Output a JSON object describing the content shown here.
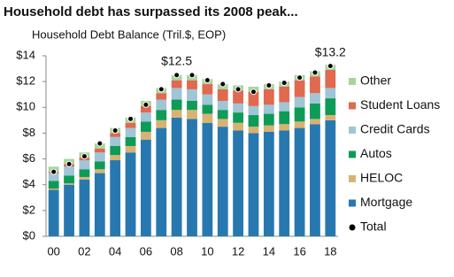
{
  "chart_data": {
    "type": "stacked-bar",
    "title": "Household debt has surpassed its 2008 peak...",
    "subtitle": "Household Debt Balance (Tril.$, EOP)",
    "categories": [
      "00",
      null,
      "02",
      null,
      "04",
      null,
      "06",
      null,
      "08",
      null,
      "10",
      null,
      "12",
      null,
      "14",
      null,
      "16",
      null,
      "18"
    ],
    "ylim": [
      0,
      14
    ],
    "yticks": [
      {
        "value": 0,
        "label": "$0"
      },
      {
        "value": 2,
        "label": "$2"
      },
      {
        "value": 4,
        "label": "$4"
      },
      {
        "value": 6,
        "label": "$6"
      },
      {
        "value": 8,
        "label": "$8"
      },
      {
        "value": 10,
        "label": "$10"
      },
      {
        "value": 12,
        "label": "$12"
      },
      {
        "value": 14,
        "label": "$14"
      }
    ],
    "series": [
      {
        "name": "Mortgage",
        "color": "#2878b0",
        "values": [
          3.6,
          4.0,
          4.4,
          4.9,
          5.9,
          6.5,
          7.5,
          8.4,
          9.2,
          9.1,
          8.8,
          8.5,
          8.2,
          8.0,
          8.1,
          8.2,
          8.4,
          8.7,
          9.0
        ]
      },
      {
        "name": "HELOC",
        "color": "#d8b272",
        "values": [
          0.1,
          0.1,
          0.2,
          0.3,
          0.4,
          0.5,
          0.6,
          0.6,
          0.6,
          0.7,
          0.7,
          0.6,
          0.6,
          0.5,
          0.5,
          0.5,
          0.5,
          0.4,
          0.4
        ]
      },
      {
        "name": "Autos",
        "color": "#0e9b58",
        "values": [
          0.6,
          0.6,
          0.6,
          0.6,
          0.7,
          0.7,
          0.8,
          0.8,
          0.8,
          0.7,
          0.7,
          0.7,
          0.8,
          0.9,
          0.9,
          1.0,
          1.1,
          1.2,
          1.3
        ]
      },
      {
        "name": "Credit Cards",
        "color": "#9fc5d6",
        "values": [
          0.6,
          0.7,
          0.7,
          0.7,
          0.7,
          0.7,
          0.7,
          0.8,
          0.9,
          0.9,
          0.8,
          0.7,
          0.7,
          0.7,
          0.7,
          0.7,
          0.8,
          0.8,
          0.8
        ]
      },
      {
        "name": "Student Loans",
        "color": "#e0694f",
        "values": [
          0.1,
          0.2,
          0.2,
          0.3,
          0.3,
          0.4,
          0.5,
          0.5,
          0.6,
          0.7,
          0.8,
          0.9,
          1.0,
          1.1,
          1.2,
          1.2,
          1.3,
          1.3,
          1.4
        ]
      },
      {
        "name": "Other",
        "color": "#a8d49c",
        "values": [
          0.4,
          0.4,
          0.4,
          0.4,
          0.4,
          0.4,
          0.4,
          0.4,
          0.4,
          0.4,
          0.4,
          0.4,
          0.4,
          0.4,
          0.4,
          0.4,
          0.4,
          0.4,
          0.4
        ]
      },
      {
        "name": "Total",
        "color": "#000000",
        "style": "dot",
        "values": [
          5.0,
          5.6,
          6.2,
          7.2,
          8.2,
          9.1,
          10.2,
          11.4,
          12.5,
          12.5,
          12.1,
          11.8,
          11.4,
          11.2,
          11.7,
          11.9,
          12.3,
          12.7,
          13.2
        ],
        "value_labels": [
          null,
          null,
          null,
          null,
          null,
          null,
          null,
          null,
          "$12.5",
          null,
          null,
          null,
          null,
          null,
          null,
          null,
          null,
          null,
          "$13.2"
        ]
      }
    ]
  }
}
